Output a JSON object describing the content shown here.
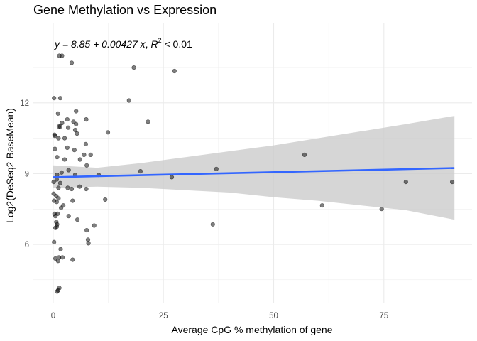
{
  "chart_data": {
    "type": "scatter",
    "title": "Gene Methylation vs Expression",
    "xlabel": "Average CpG % methylation of gene",
    "ylabel": "Log2(DeSeq2 BaseMean)",
    "xlim": [
      -4.5,
      95
    ],
    "ylim": [
      3.5,
      15.4
    ],
    "x_ticks": [
      0,
      25,
      50,
      75
    ],
    "y_ticks": [
      6,
      9,
      12
    ],
    "grid": true,
    "annotation": {
      "prefix": "y = 8.85 + 0.00427 ",
      "var": "x",
      "mid": ", ",
      "r": "R",
      "sup": "2",
      "suffix": " < 0.01"
    },
    "fit": {
      "intercept": 8.85,
      "slope": 0.00427,
      "x_range": [
        0,
        91
      ],
      "ci_band": [
        [
          0,
          8.4,
          9.35
        ],
        [
          10,
          8.45,
          9.25
        ],
        [
          20,
          8.4,
          9.45
        ],
        [
          30,
          8.3,
          9.7
        ],
        [
          40,
          8.2,
          9.95
        ],
        [
          50,
          8.0,
          10.2
        ],
        [
          60,
          7.85,
          10.5
        ],
        [
          70,
          7.65,
          10.8
        ],
        [
          80,
          7.45,
          11.1
        ],
        [
          91,
          7.05,
          11.45
        ]
      ]
    },
    "colors": {
      "point": "#000000",
      "line": "#3366ff",
      "band": "#cccccc",
      "grid": "#ebebeb"
    },
    "points": [
      [
        1.4,
        14
      ],
      [
        2.0,
        14
      ],
      [
        4.2,
        13.7
      ],
      [
        18.3,
        13.5
      ],
      [
        27.5,
        13.35
      ],
      [
        0.2,
        12.2
      ],
      [
        1.6,
        12.2
      ],
      [
        17.2,
        12.1
      ],
      [
        5.2,
        11.65
      ],
      [
        7.5,
        11.3
      ],
      [
        1.1,
        11.55
      ],
      [
        3.2,
        11.3
      ],
      [
        4.6,
        11.2
      ],
      [
        1.3,
        11
      ],
      [
        1.6,
        11
      ],
      [
        2.0,
        11.15
      ],
      [
        3.4,
        10.95
      ],
      [
        5.0,
        10.85
      ],
      [
        5.2,
        11.1
      ],
      [
        21.5,
        11.2
      ],
      [
        0.3,
        10.65
      ],
      [
        0.4,
        10.6
      ],
      [
        1.2,
        10.5
      ],
      [
        2.6,
        10.5
      ],
      [
        5.4,
        10.7
      ],
      [
        7.4,
        10.25
      ],
      [
        12.4,
        10.75
      ],
      [
        0.4,
        10.05
      ],
      [
        3.2,
        10.1
      ],
      [
        4.8,
        10.0
      ],
      [
        7.0,
        9.8
      ],
      [
        8.5,
        9.8
      ],
      [
        6.1,
        9.6
      ],
      [
        2.6,
        9.6
      ],
      [
        0.9,
        9.7
      ],
      [
        7.6,
        9.35
      ],
      [
        3.5,
        9.15
      ],
      [
        0.9,
        8.95
      ],
      [
        1.9,
        9.05
      ],
      [
        5.0,
        8.95
      ],
      [
        10.3,
        8.95
      ],
      [
        19.8,
        9.1
      ],
      [
        26.9,
        8.85
      ],
      [
        37.0,
        9.2
      ],
      [
        57.0,
        9.8
      ],
      [
        0.1,
        8.65
      ],
      [
        0.8,
        8.75
      ],
      [
        1.6,
        8.6
      ],
      [
        1.2,
        8.4
      ],
      [
        3.3,
        8.4
      ],
      [
        4.2,
        8.35
      ],
      [
        6.0,
        8.45
      ],
      [
        7.5,
        8.35
      ],
      [
        0.1,
        8.15
      ],
      [
        0.7,
        8.05
      ],
      [
        1.2,
        7.95
      ],
      [
        0.2,
        7.85
      ],
      [
        0.8,
        7.8
      ],
      [
        4.4,
        7.85
      ],
      [
        11.8,
        7.9
      ],
      [
        80.0,
        8.65
      ],
      [
        90.5,
        8.65
      ],
      [
        1.8,
        7.55
      ],
      [
        2.3,
        7.65
      ],
      [
        0.3,
        7.3
      ],
      [
        0.5,
        7.2
      ],
      [
        1.0,
        7.3
      ],
      [
        3.5,
        7.2
      ],
      [
        5.5,
        7.05
      ],
      [
        61.0,
        7.65
      ],
      [
        74.5,
        7.5
      ],
      [
        0.7,
        6.95
      ],
      [
        0.9,
        6.85
      ],
      [
        0.5,
        6.7
      ],
      [
        0.8,
        6.75
      ],
      [
        9.3,
        6.8
      ],
      [
        36.2,
        6.85
      ],
      [
        7.6,
        6.6
      ],
      [
        0.2,
        6.1
      ],
      [
        7.9,
        6.2
      ],
      [
        8.0,
        6.05
      ],
      [
        1.7,
        5.8
      ],
      [
        0.5,
        5.4
      ],
      [
        1.3,
        5.45
      ],
      [
        2.1,
        5.45
      ],
      [
        4.4,
        5.35
      ],
      [
        1.1,
        5.3
      ],
      [
        1.4,
        4.15
      ],
      [
        1.1,
        4.05
      ],
      [
        0.9,
        4.0
      ]
    ]
  }
}
